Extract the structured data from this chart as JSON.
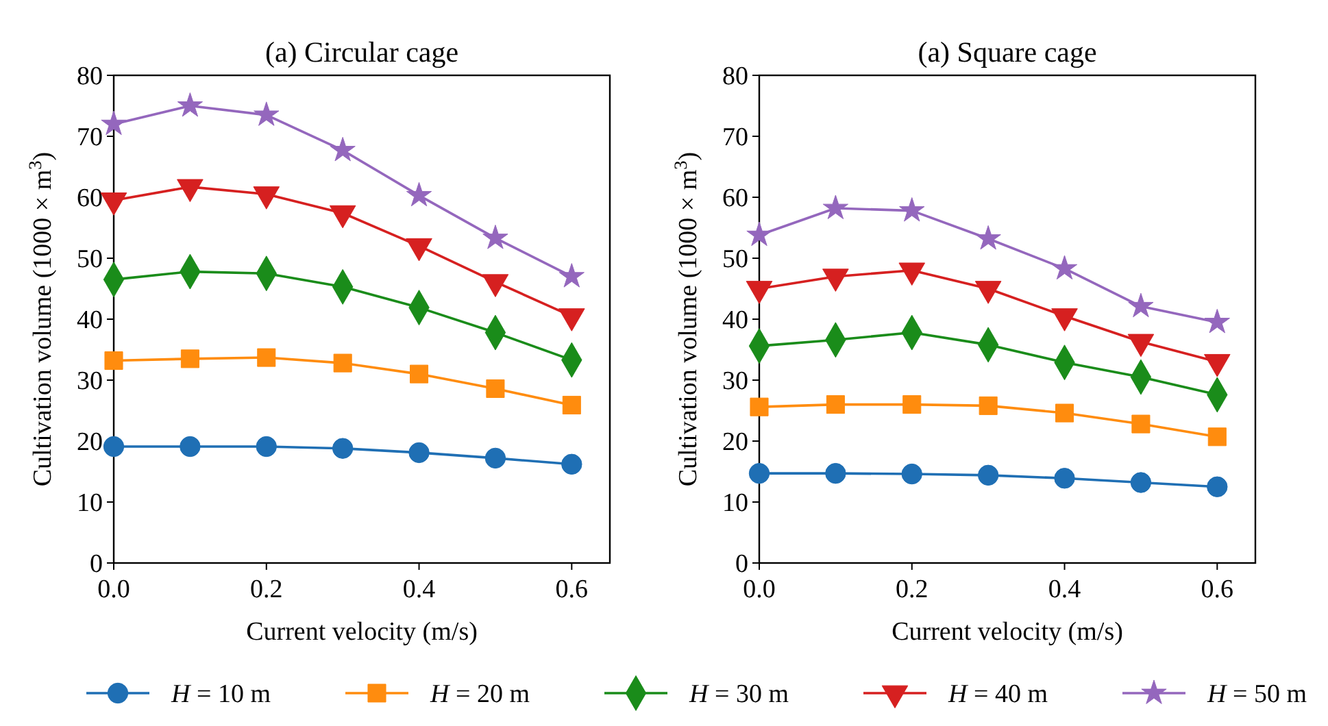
{
  "chart_data": [
    {
      "type": "line",
      "title": "(a) Circular cage",
      "xlabel": "Current velocity (m/s)",
      "ylabel": "Cultivation volume (1000 × m$^{3}$)",
      "x": [
        0,
        0.1,
        0.2,
        0.3,
        0.4,
        0.5,
        0.6
      ],
      "xlim": [
        0,
        0.65
      ],
      "xticks": [
        {
          "value": 0,
          "label": "0.0"
        },
        {
          "value": 0.2,
          "label": "0.2"
        },
        {
          "value": 0.4,
          "label": "0.4"
        },
        {
          "value": 0.6,
          "label": "0.6"
        }
      ],
      "ylim": [
        0,
        80
      ],
      "yticks": [
        0,
        10,
        20,
        30,
        40,
        50,
        60,
        70,
        80
      ],
      "grid": false,
      "legend": "bottom",
      "series": [
        {
          "name": "H = 10 m",
          "color": "#1f6fb4",
          "marker": "circle",
          "values": [
            19.1,
            19.1,
            19.1,
            18.8,
            18.1,
            17.2,
            16.2
          ]
        },
        {
          "name": "H = 20 m",
          "color": "#ff8c0e",
          "marker": "square",
          "values": [
            33.2,
            33.5,
            33.7,
            32.8,
            31.0,
            28.6,
            25.9
          ]
        },
        {
          "name": "H = 30 m",
          "color": "#1a8c1a",
          "marker": "diamond",
          "values": [
            46.5,
            47.8,
            47.5,
            45.3,
            41.9,
            37.8,
            33.3
          ]
        },
        {
          "name": "H = 40 m",
          "color": "#d62020",
          "marker": "triangle-down",
          "values": [
            59.5,
            61.7,
            60.5,
            57.4,
            52.0,
            46.1,
            40.5
          ]
        },
        {
          "name": "H = 50 m",
          "color": "#9467bd",
          "marker": "star",
          "values": [
            72.0,
            75.0,
            73.5,
            67.7,
            60.3,
            53.3,
            47.0
          ]
        }
      ]
    },
    {
      "type": "line",
      "title": "(a) Square cage",
      "xlabel": "Current velocity (m/s)",
      "ylabel": "Cultivation volume (1000 × m$^{3}$)",
      "x": [
        0,
        0.1,
        0.2,
        0.3,
        0.4,
        0.5,
        0.6
      ],
      "xlim": [
        0,
        0.65
      ],
      "xticks": [
        {
          "value": 0,
          "label": "0.0"
        },
        {
          "value": 0.2,
          "label": "0.2"
        },
        {
          "value": 0.4,
          "label": "0.4"
        },
        {
          "value": 0.6,
          "label": "0.6"
        }
      ],
      "ylim": [
        0,
        80
      ],
      "yticks": [
        0,
        10,
        20,
        30,
        40,
        50,
        60,
        70,
        80
      ],
      "grid": false,
      "series": [
        {
          "color": "#1f6fb4",
          "marker": "circle",
          "values": [
            14.7,
            14.7,
            14.6,
            14.4,
            13.9,
            13.2,
            12.5
          ]
        },
        {
          "color": "#ff8c0e",
          "marker": "square",
          "values": [
            25.6,
            26.0,
            26.0,
            25.8,
            24.6,
            22.8,
            20.7
          ]
        },
        {
          "color": "#1a8c1a",
          "marker": "diamond",
          "values": [
            35.6,
            36.6,
            37.8,
            35.8,
            32.9,
            30.5,
            27.6
          ]
        },
        {
          "color": "#d62020",
          "marker": "triangle-down",
          "values": [
            45.0,
            47.0,
            48.0,
            45.0,
            40.5,
            36.3,
            33.0
          ]
        },
        {
          "color": "#9467bd",
          "marker": "star",
          "values": [
            53.8,
            58.2,
            57.8,
            53.2,
            48.3,
            42.1,
            39.5
          ]
        }
      ]
    }
  ]
}
